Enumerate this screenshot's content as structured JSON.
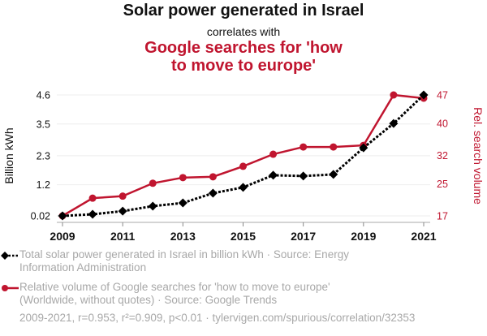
{
  "chart_data": {
    "type": "line",
    "title": "Solar power generated in Israel",
    "subtitle_connector": "correlates with",
    "title2": "Google searches for 'how to move to europe'",
    "title2_lines": [
      "Google searches for 'how",
      "to move to europe'"
    ],
    "x": [
      2009,
      2010,
      2011,
      2012,
      2013,
      2014,
      2015,
      2016,
      2017,
      2018,
      2019,
      2020,
      2021
    ],
    "x_tick_labels": [
      "2009",
      "2011",
      "2013",
      "2015",
      "2017",
      "2019",
      "2021"
    ],
    "series": [
      {
        "name": "Total solar power generated in Israel in billion kWh",
        "axis": "left",
        "color": "#000000",
        "style": "dotted",
        "marker": "diamond",
        "values": [
          0.02,
          0.08,
          0.2,
          0.39,
          0.51,
          0.88,
          1.1,
          1.56,
          1.53,
          1.59,
          2.6,
          3.52,
          4.6
        ]
      },
      {
        "name": "Relative volume of Google searches for 'how to move to europe'",
        "axis": "right",
        "color": "#c0152f",
        "style": "solid",
        "marker": "circle",
        "values": [
          17,
          21.4,
          21.9,
          25.1,
          26.5,
          26.7,
          29.3,
          32.3,
          34.1,
          34.1,
          34.5,
          47,
          46.2
        ]
      }
    ],
    "ylabel_left": "Billion kWh",
    "ylabel_right": "Rel. search volume",
    "ylim_left": [
      0.02,
      4.6
    ],
    "ylim_right": [
      17,
      47
    ],
    "yticks_left": [
      "0.02",
      "1.2",
      "2.3",
      "3.5",
      "4.6"
    ],
    "yticks_right": [
      "17",
      "25",
      "32",
      "40",
      "47"
    ],
    "xlim": [
      2009,
      2021
    ],
    "grid": true,
    "legend_placement": "bottom-left"
  },
  "legend": [
    {
      "line1": "Total solar power generated in Israel in billion kWh · Source: Energy",
      "line2": "Information Administration"
    },
    {
      "line1": "Relative volume of Google searches for 'how to move to europe'",
      "line2": "(Worldwide, without quotes) · Source: Google Trends"
    }
  ],
  "footer": "2009-2021, r=0.953, r²=0.909, p<0.01 · tylervigen.com/spurious/correlation/32353"
}
